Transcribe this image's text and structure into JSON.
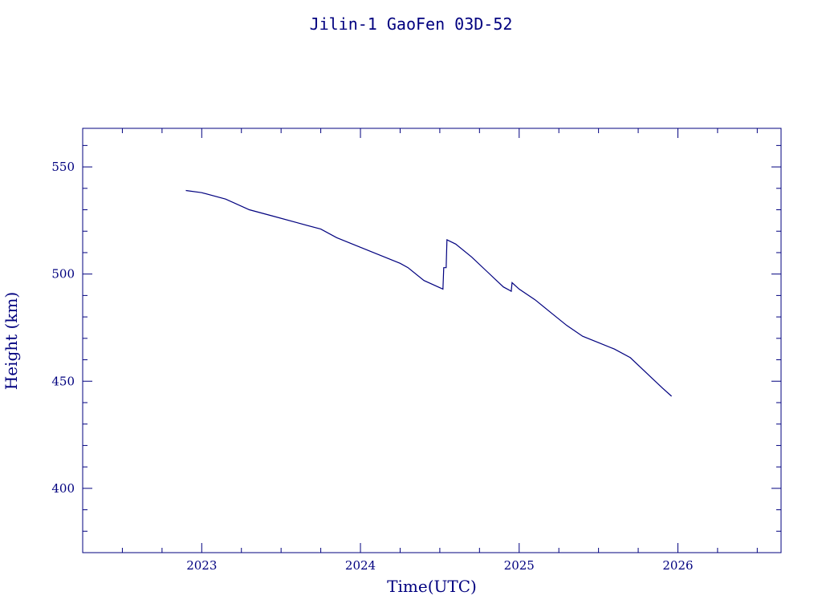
{
  "chart_data": {
    "type": "line",
    "title": "Jilin-1 GaoFen 03D-52",
    "xlabel": "Time(UTC)",
    "ylabel": "Height (km)",
    "xlim": [
      2022.25,
      2026.65
    ],
    "ylim": [
      370,
      568
    ],
    "x_ticks": [
      2023,
      2024,
      2025,
      2026
    ],
    "y_ticks": [
      400,
      450,
      500,
      550
    ],
    "grid": false,
    "colors": {
      "axis": "#00007f",
      "series": "#00007f"
    },
    "series": [
      {
        "x": [
          2022.9,
          2023.0,
          2023.15,
          2023.3,
          2023.45,
          2023.6,
          2023.75,
          2023.85,
          2023.95,
          2024.05,
          2024.15,
          2024.25,
          2024.3,
          2024.4,
          2024.52,
          2024.525,
          2024.54,
          2024.545,
          2024.6,
          2024.7,
          2024.8,
          2024.9,
          2024.95,
          2024.955,
          2025.0,
          2025.1,
          2025.2,
          2025.3,
          2025.4,
          2025.5,
          2025.6,
          2025.7,
          2025.8,
          2025.9,
          2025.96
        ],
        "y": [
          539,
          538,
          535,
          530,
          527,
          524,
          521,
          517,
          514,
          511,
          508,
          505,
          503,
          497,
          493,
          503,
          503,
          516,
          514,
          508,
          501,
          494,
          492,
          496,
          493,
          488,
          482,
          476,
          471,
          468,
          465,
          461,
          454,
          447,
          443
        ]
      }
    ]
  }
}
